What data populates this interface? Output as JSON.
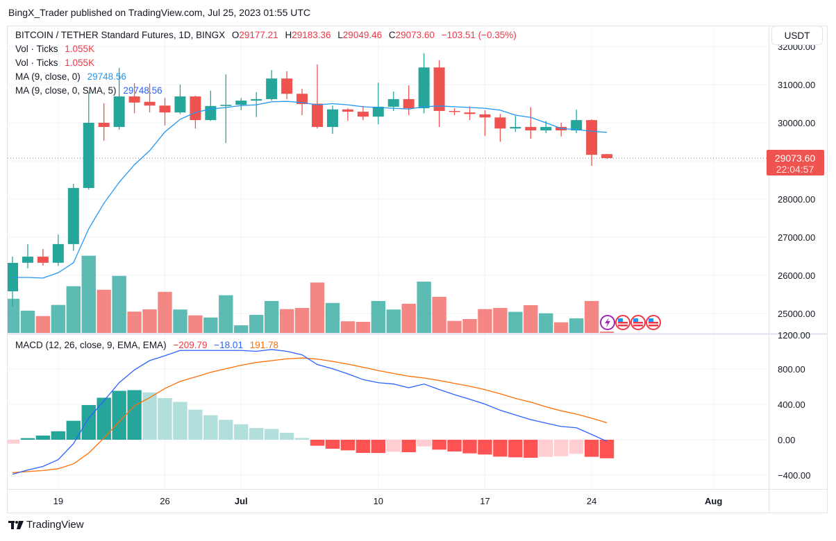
{
  "header": {
    "published": "BingX_Trader published on TradingView.com, Jul 25, 2023 01:55 UTC"
  },
  "currency_button": "USDT",
  "legend": {
    "symbol": "BITCOIN / TETHER Standard Futures, 1D, BINGX",
    "o_label": "O",
    "o": "29177.21",
    "h_label": "H",
    "h": "29183.36",
    "l_label": "L",
    "l": "29049.46",
    "c_label": "C",
    "c": "29073.60",
    "change": "−103.51 (−0.35%)",
    "vol1_label": "Vol · Ticks",
    "vol1_value": "1.055K",
    "vol2_label": "Vol · Ticks",
    "vol2_value": "1.055K",
    "ma1_label": "MA (9, close, 0)",
    "ma1_value": "29748.56",
    "ma2_label": "MA (9, close, 0, SMA, 5)",
    "ma2_value": "29748.56"
  },
  "macd_legend": {
    "label": "MACD (12, 26, close, 9, EMA, EMA)",
    "hist": "−209.79",
    "macd": "−18.01",
    "signal": "191.78"
  },
  "last_price": {
    "price": "29073.60",
    "countdown": "22:04:57"
  },
  "footer": {
    "brand": "TradingView"
  },
  "colors": {
    "up": "#26a69a",
    "down": "#ef5350",
    "ma": "#2196f3",
    "macd": "#2962ff",
    "signal": "#ff6d00",
    "hist_up_strong": "#26a69a",
    "hist_up_weak": "#b2dfdb",
    "hist_down_strong": "#ff5252",
    "hist_down_weak": "#ffcdd2"
  },
  "chart_data": [
    {
      "type": "candlestick",
      "title": "BITCOIN / TETHER Standard Futures, 1D, BINGX",
      "start_date": "2023-06-16",
      "open": [
        25582,
        26330,
        26490,
        26330,
        26820,
        28290,
        30000,
        29890,
        30690,
        30550,
        30450,
        30270,
        30690,
        30070,
        30440,
        30470,
        30580,
        30620,
        31160,
        30760,
        30500,
        29890,
        30350,
        30290,
        30160,
        30420,
        30620,
        30380,
        31450,
        30310,
        30270,
        30220,
        30140,
        29850,
        29890,
        29800,
        29890,
        29800,
        30070,
        29177.21
      ],
      "high": [
        26491,
        26818,
        26690,
        27070,
        28400,
        30800,
        30510,
        31440,
        31040,
        31030,
        30650,
        31000,
        30710,
        30840,
        31270,
        30650,
        30800,
        31380,
        31350,
        30890,
        31530,
        30450,
        30380,
        30440,
        31050,
        30820,
        30980,
        31820,
        31640,
        30380,
        30430,
        30330,
        30230,
        30180,
        30410,
        30050,
        30000,
        30340,
        30090,
        29183.36
      ],
      "low": [
        25182,
        26182,
        26255,
        26250,
        26640,
        28250,
        29530,
        29820,
        30250,
        30270,
        29930,
        30230,
        29850,
        30050,
        29470,
        30330,
        30150,
        30580,
        30620,
        30200,
        29850,
        29710,
        30050,
        30070,
        29960,
        30310,
        30200,
        30250,
        29890,
        30200,
        30070,
        29650,
        29500,
        29760,
        29580,
        29730,
        29640,
        29730,
        28870,
        29049.46
      ],
      "close": [
        26327,
        26490,
        26330,
        26820,
        28290,
        30000,
        29890,
        30690,
        30530,
        30450,
        30270,
        30690,
        30070,
        30440,
        30470,
        30580,
        30620,
        31160,
        30760,
        30490,
        29890,
        30350,
        30290,
        30160,
        30420,
        30620,
        30380,
        31450,
        30310,
        30290,
        30230,
        30140,
        29850,
        29890,
        29800,
        29890,
        29800,
        30070,
        29160,
        29073.6
      ],
      "volume_k": [
        26.1,
        17.0,
        12.9,
        21.4,
        35.7,
        59.0,
        33.0,
        43.6,
        16.3,
        18.0,
        31.4,
        17.9,
        13.4,
        11.8,
        28.8,
        5.8,
        13.8,
        24.4,
        18.2,
        19.1,
        38.5,
        22.9,
        8.9,
        8.5,
        24.4,
        17.9,
        22.3,
        39.2,
        27.6,
        9.2,
        10.6,
        18.2,
        19.1,
        16.1,
        21.2,
        15.0,
        8.1,
        11.1,
        24.4,
        1.055
      ],
      "ma9": [
        25945,
        25945,
        25930,
        26070,
        26330,
        27220,
        27890,
        28440,
        28900,
        29270,
        29760,
        30090,
        30270,
        30360,
        30400,
        30450,
        30470,
        30550,
        30560,
        30530,
        30470,
        30500,
        30470,
        30420,
        30400,
        30380,
        30360,
        30420,
        30440,
        30420,
        30400,
        30380,
        30330,
        30200,
        30140,
        30000,
        29850,
        29820,
        29780,
        29748.56
      ],
      "ylim": [
        24500,
        32700
      ],
      "price_axis_labels": [
        "32000.00",
        "31000.00",
        "30000.00",
        "28000.00",
        "27000.00",
        "26000.00",
        "25000.00"
      ],
      "grid_prices": [
        25000,
        26000,
        27000,
        28000,
        29000,
        30000,
        31000,
        32000
      ],
      "last_price": 29073.6
    },
    {
      "type": "bar+line",
      "title": "MACD (12, 26, close, 9, EMA, EMA)",
      "start_date": "2023-06-16",
      "histogram": [
        -45,
        18,
        47,
        96,
        214,
        392,
        475,
        553,
        561,
        535,
        471,
        428,
        340,
        277,
        225,
        175,
        133,
        122,
        78,
        20,
        -68,
        -102,
        -120,
        -149,
        -150,
        -136,
        -141,
        -76,
        -112,
        -133,
        -154,
        -167,
        -191,
        -199,
        -204,
        -193,
        -186,
        -159,
        -193,
        -209.79
      ],
      "macd": [
        -390,
        -342,
        -302,
        -225,
        -45,
        245,
        440,
        645,
        790,
        895,
        950,
        1010,
        1010,
        1010,
        1010,
        1010,
        1000,
        1020,
        1000,
        960,
        850,
        803,
        745,
        680,
        645,
        630,
        588,
        630,
        568,
        510,
        458,
        403,
        333,
        280,
        227,
        188,
        150,
        135,
        60,
        -18.01
      ],
      "signal": [
        -372,
        -360,
        -348,
        -328,
        -273,
        -151,
        20,
        203,
        385,
        476,
        580,
        660,
        710,
        763,
        803,
        842,
        874,
        894,
        915,
        925,
        912,
        886,
        855,
        820,
        782,
        750,
        718,
        698,
        670,
        637,
        605,
        567,
        520,
        468,
        425,
        373,
        327,
        290,
        243,
        191.78
      ],
      "axis_labels": [
        "1200.00",
        "800.00",
        "400.00",
        "0.00",
        "−400.00"
      ],
      "ylim": [
        -470,
        1220
      ]
    }
  ],
  "time_axis": [
    {
      "label": "19",
      "date": "2023-06-19"
    },
    {
      "label": "26",
      "date": "2023-06-26"
    },
    {
      "label": "Jul",
      "date": "2023-07-01",
      "bold": true
    },
    {
      "label": "10",
      "date": "2023-07-10"
    },
    {
      "label": "17",
      "date": "2023-07-17"
    },
    {
      "label": "24",
      "date": "2023-07-24"
    },
    {
      "label": "Aug",
      "date": "2023-08-01",
      "bold": true
    }
  ]
}
